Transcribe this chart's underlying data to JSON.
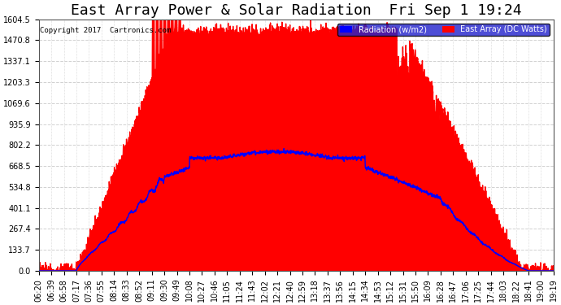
{
  "title": "East Array Power & Solar Radiation  Fri Sep 1 19:24",
  "copyright": "Copyright 2017  Cartronics.com",
  "legend_labels": [
    "Radiation (w/m2)",
    "East Array (DC Watts)"
  ],
  "legend_colors": [
    "#0000ff",
    "#ff0000"
  ],
  "bg_color": "#ffffff",
  "plot_bg": "#ffffff",
  "y_ticks": [
    0.0,
    133.7,
    267.4,
    401.1,
    534.8,
    668.5,
    802.2,
    935.9,
    1069.6,
    1203.3,
    1337.1,
    1470.8,
    1604.5
  ],
  "ymax": 1604.5,
  "x_labels": [
    "06:20",
    "06:39",
    "06:58",
    "07:17",
    "07:36",
    "07:55",
    "08:14",
    "08:33",
    "08:52",
    "09:11",
    "09:30",
    "09:49",
    "10:08",
    "10:27",
    "10:46",
    "11:05",
    "11:24",
    "11:43",
    "12:02",
    "12:21",
    "12:40",
    "12:59",
    "13:18",
    "13:37",
    "13:56",
    "14:15",
    "14:34",
    "14:53",
    "15:12",
    "15:31",
    "15:50",
    "16:09",
    "16:28",
    "16:47",
    "17:06",
    "17:25",
    "17:44",
    "18:03",
    "18:22",
    "18:41",
    "19:00",
    "19:19"
  ],
  "title_fontsize": 13,
  "tick_fontsize": 7.0,
  "grid_color": "#aaaaaa",
  "red_color": "#ff0000",
  "blue_color": "#0000ff",
  "white_color": "#ffffff"
}
